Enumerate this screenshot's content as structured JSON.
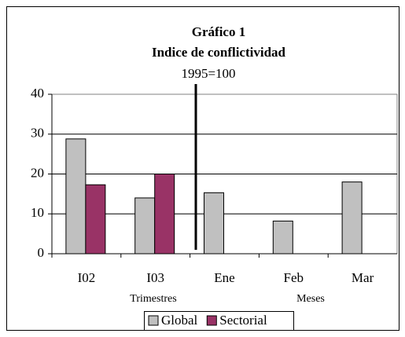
{
  "chart_data": {
    "type": "bar",
    "title": "Gráfico 1",
    "subtitle": "Indice de conflictividad",
    "note": "1995=100",
    "categories": [
      "I02",
      "I03",
      "Ene",
      "Feb",
      "Mar"
    ],
    "series": [
      {
        "name": "Global",
        "color": "#c0c0c0",
        "values": [
          28.8,
          14,
          15.3,
          8.2,
          18
        ]
      },
      {
        "name": "Sectorial",
        "color": "#993366",
        "values": [
          17.3,
          20,
          null,
          null,
          null
        ]
      }
    ],
    "annotations": [
      "Trimestres",
      "Meses"
    ],
    "ylim": [
      0,
      40
    ],
    "yticks": [
      0,
      10,
      20,
      30,
      40
    ],
    "grid": true,
    "legend": "bottom"
  }
}
